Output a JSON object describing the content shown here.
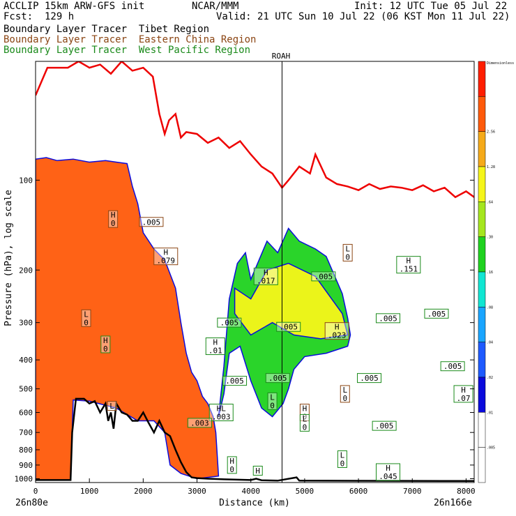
{
  "header": {
    "left_line1": "ACCLIP 15km ARW-GFS init",
    "left_line2": "Fcst:  129 h",
    "center": "NCAR/MMM",
    "right_line1": "Init: 12 UTC Tue 05 Jul 22",
    "right_line2": "Valid: 21 UTC Sun 10 Jul 22 (06 KST Mon 11 Jul 22)",
    "tracer_tibet": "Boundary Layer Tracer  Tibet Region",
    "tracer_china": "Boundary Layer Tracer  Eastern China Region",
    "tracer_pacific": "Boundary Layer Tracer  West Pacific Region",
    "marker": "ROAH"
  },
  "colors": {
    "tibet_line": "#000000",
    "china_line": "#8b4513",
    "pacific_line": "#1a8a1a",
    "tropopause": "#ee0000",
    "terrain": "#000000"
  },
  "chart_data": {
    "type": "heatmap",
    "xlabel": "Distance (km)",
    "ylabel": "Pressure (hPa), log scale",
    "x_start_label": "26n80e",
    "x_end_label": "26n166e",
    "xlim": [
      0,
      8150
    ],
    "ylim": [
      1030,
      40
    ],
    "y_scale": "log",
    "x_ticks": [
      0,
      1000,
      2000,
      3000,
      4000,
      5000,
      6000,
      7000,
      8000
    ],
    "y_ticks": [
      100,
      200,
      300,
      400,
      500,
      600,
      700,
      800,
      900,
      1000
    ],
    "marker_x": 4580,
    "colorbar": {
      "title": "Dimensionless",
      "labels": [
        ".005",
        ".01",
        ".02",
        ".04",
        ".08",
        ".16",
        ".30",
        ".64",
        "1.28",
        "2.56"
      ],
      "colors": [
        "#ffffff",
        "#ffffff",
        "#0a0adc",
        "#1e5aff",
        "#19a5ff",
        "#10e6d2",
        "#1fd21f",
        "#a5e61e",
        "#f5f519",
        "#f5aa19",
        "#ff5a0a",
        "#ff1e00"
      ]
    },
    "tropopause": [
      [
        0,
        52
      ],
      [
        220,
        42
      ],
      [
        400,
        42
      ],
      [
        600,
        42
      ],
      [
        800,
        40
      ],
      [
        1000,
        42
      ],
      [
        1200,
        41
      ],
      [
        1400,
        44
      ],
      [
        1600,
        40
      ],
      [
        1800,
        43
      ],
      [
        2000,
        42
      ],
      [
        2180,
        45
      ],
      [
        2300,
        60
      ],
      [
        2400,
        70
      ],
      [
        2480,
        63
      ],
      [
        2600,
        60
      ],
      [
        2700,
        72
      ],
      [
        2800,
        69
      ],
      [
        3000,
        70
      ],
      [
        3200,
        75
      ],
      [
        3400,
        72
      ],
      [
        3600,
        78
      ],
      [
        3800,
        74
      ],
      [
        4000,
        82
      ],
      [
        4200,
        90
      ],
      [
        4400,
        95
      ],
      [
        4580,
        106
      ],
      [
        4700,
        100
      ],
      [
        4900,
        90
      ],
      [
        5100,
        95
      ],
      [
        5200,
        82
      ],
      [
        5400,
        98
      ],
      [
        5600,
        103
      ],
      [
        5800,
        105
      ],
      [
        6000,
        108
      ],
      [
        6200,
        103
      ],
      [
        6400,
        107
      ],
      [
        6600,
        105
      ],
      [
        6800,
        106
      ],
      [
        7000,
        108
      ],
      [
        7200,
        104
      ],
      [
        7400,
        109
      ],
      [
        7600,
        106
      ],
      [
        7800,
        114
      ],
      [
        8000,
        109
      ],
      [
        8150,
        114
      ]
    ],
    "terrain": [
      [
        0,
        1010
      ],
      [
        650,
        1010
      ],
      [
        680,
        700
      ],
      [
        750,
        540
      ],
      [
        900,
        540
      ],
      [
        1000,
        560
      ],
      [
        1100,
        550
      ],
      [
        1200,
        600
      ],
      [
        1300,
        560
      ],
      [
        1350,
        640
      ],
      [
        1400,
        600
      ],
      [
        1450,
        680
      ],
      [
        1500,
        560
      ],
      [
        1600,
        600
      ],
      [
        1700,
        610
      ],
      [
        1800,
        640
      ],
      [
        1900,
        640
      ],
      [
        2000,
        600
      ],
      [
        2100,
        650
      ],
      [
        2200,
        700
      ],
      [
        2300,
        640
      ],
      [
        2400,
        700
      ],
      [
        2500,
        720
      ],
      [
        2600,
        800
      ],
      [
        2700,
        880
      ],
      [
        2800,
        950
      ],
      [
        2900,
        990
      ],
      [
        3000,
        995
      ],
      [
        3200,
        1000
      ],
      [
        3500,
        1005
      ],
      [
        4000,
        1010
      ],
      [
        4100,
        1000
      ],
      [
        4200,
        1012
      ],
      [
        4500,
        1015
      ],
      [
        4850,
        990
      ],
      [
        4900,
        1015
      ],
      [
        8150,
        1018
      ]
    ],
    "tracer_fields": [
      {
        "name": "Tibet",
        "level": ".005",
        "color": "#ff5a0a",
        "outline": [
          [
            0,
            85
          ],
          [
            200,
            84
          ],
          [
            400,
            86
          ],
          [
            700,
            85
          ],
          [
            1000,
            87
          ],
          [
            1300,
            86
          ],
          [
            1500,
            87
          ],
          [
            1700,
            88
          ],
          [
            1800,
            105
          ],
          [
            1900,
            120
          ],
          [
            2000,
            150
          ],
          [
            2200,
            170
          ],
          [
            2400,
            185
          ],
          [
            2600,
            230
          ],
          [
            2700,
            300
          ],
          [
            2800,
            380
          ],
          [
            2900,
            440
          ],
          [
            3000,
            470
          ],
          [
            3100,
            530
          ],
          [
            3200,
            560
          ],
          [
            3300,
            620
          ],
          [
            3350,
            700
          ],
          [
            3400,
            980
          ],
          [
            3000,
            1000
          ],
          [
            2700,
            960
          ],
          [
            2500,
            900
          ],
          [
            2400,
            700
          ],
          [
            2200,
            640
          ],
          [
            1900,
            640
          ],
          [
            1500,
            580
          ],
          [
            1000,
            550
          ],
          [
            700,
            545
          ],
          [
            650,
            1010
          ],
          [
            0,
            1010
          ]
        ]
      },
      {
        "name": "EastChina",
        "level": ".005",
        "color": "#1fd21f",
        "outline": [
          [
            3400,
            620
          ],
          [
            3500,
            420
          ],
          [
            3600,
            250
          ],
          [
            3750,
            190
          ],
          [
            3900,
            175
          ],
          [
            4000,
            215
          ],
          [
            4100,
            195
          ],
          [
            4300,
            160
          ],
          [
            4500,
            175
          ],
          [
            4700,
            145
          ],
          [
            4900,
            160
          ],
          [
            5200,
            170
          ],
          [
            5400,
            180
          ],
          [
            5700,
            240
          ],
          [
            5800,
            290
          ],
          [
            5850,
            330
          ],
          [
            5800,
            360
          ],
          [
            5400,
            380
          ],
          [
            5000,
            390
          ],
          [
            4800,
            430
          ],
          [
            4700,
            500
          ],
          [
            4600,
            560
          ],
          [
            4400,
            620
          ],
          [
            4200,
            580
          ],
          [
            4000,
            470
          ],
          [
            3800,
            360
          ],
          [
            3600,
            380
          ],
          [
            3500,
            520
          ]
        ]
      },
      {
        "name": "EastChinaOrange",
        "level": ".30",
        "color": "#f5f519",
        "outline": [
          [
            3700,
            230
          ],
          [
            4000,
            250
          ],
          [
            4300,
            200
          ],
          [
            4700,
            190
          ],
          [
            5200,
            210
          ],
          [
            5700,
            280
          ],
          [
            5800,
            330
          ],
          [
            5300,
            340
          ],
          [
            4800,
            330
          ],
          [
            4400,
            300
          ],
          [
            4000,
            330
          ],
          [
            3700,
            280
          ]
        ]
      }
    ],
    "labels": [
      {
        "text": "H",
        "sub": "0",
        "x": 1440,
        "p": 135,
        "color": "#8b4513"
      },
      {
        "text": ".005",
        "sub": "",
        "x": 2150,
        "p": 138,
        "color": "#8b4513"
      },
      {
        "text": "H",
        "sub": ".079",
        "x": 2420,
        "p": 180,
        "color": "#8b4513"
      },
      {
        "text": "L",
        "sub": "0",
        "x": 940,
        "p": 290,
        "color": "#8b4513"
      },
      {
        "text": "H",
        "sub": "0",
        "x": 1300,
        "p": 355,
        "color": "#1a8a1a"
      },
      {
        "text": "L",
        "sub": "",
        "x": 1420,
        "p": 570,
        "color": "#8b4513"
      },
      {
        "text": "H",
        "sub": ".01",
        "x": 3340,
        "p": 360,
        "color": "#1a8a1a"
      },
      {
        "text": ".005",
        "sub": "",
        "x": 3600,
        "p": 300,
        "color": "#1a8a1a"
      },
      {
        "text": "H",
        "sub": ".017",
        "x": 4280,
        "p": 210,
        "color": "#1a8a1a"
      },
      {
        "text": ".005",
        "sub": "",
        "x": 4700,
        "p": 310,
        "color": "#1a8a1a"
      },
      {
        "text": "H",
        "sub": ".023",
        "x": 5600,
        "p": 320,
        "color": "#8b4513"
      },
      {
        "text": ".005",
        "sub": "",
        "x": 5350,
        "p": 210,
        "color": "#1a8a1a"
      },
      {
        "text": ".005",
        "sub": "",
        "x": 4500,
        "p": 460,
        "color": "#1a8a1a"
      },
      {
        "text": ".005",
        "sub": "",
        "x": 3700,
        "p": 470,
        "color": "#1a8a1a"
      },
      {
        "text": "L",
        "sub": "0",
        "x": 4400,
        "p": 550,
        "color": "#1a8a1a"
      },
      {
        "text": "L",
        "sub": "0",
        "x": 5750,
        "p": 520,
        "color": "#8b4513"
      },
      {
        "text": ".005",
        "sub": "",
        "x": 6200,
        "p": 460,
        "color": "#1a8a1a"
      },
      {
        "text": ".005",
        "sub": "",
        "x": 6550,
        "p": 290,
        "color": "#1a8a1a"
      },
      {
        "text": ".005",
        "sub": "",
        "x": 7450,
        "p": 280,
        "color": "#1a8a1a"
      },
      {
        "text": ".005",
        "sub": "",
        "x": 7750,
        "p": 420,
        "color": "#1a8a1a"
      },
      {
        "text": "H",
        "sub": ".151",
        "x": 6930,
        "p": 192,
        "color": "#1a8a1a"
      },
      {
        "text": "H",
        "sub": ".07",
        "x": 7950,
        "p": 520,
        "color": "#1a8a1a"
      },
      {
        "text": ".005",
        "sub": "",
        "x": 6480,
        "p": 665,
        "color": "#1a8a1a"
      },
      {
        "text": "H",
        "sub": "0",
        "x": 5000,
        "p": 600,
        "color": "#8b4513"
      },
      {
        "text": "L",
        "sub": "0",
        "x": 5000,
        "p": 650,
        "color": "#1a8a1a"
      },
      {
        "text": "L",
        "sub": "0",
        "x": 5700,
        "p": 860,
        "color": "#1a8a1a"
      },
      {
        "text": "H",
        "sub": ".045",
        "x": 6550,
        "p": 950,
        "color": "#1a8a1a"
      },
      {
        "text": "H",
        "sub": "",
        "x": 4130,
        "p": 940,
        "color": "#1a8a1a"
      },
      {
        "text": "HL",
        "sub": ".003",
        "x": 3450,
        "p": 600,
        "color": "#1a8a1a"
      },
      {
        "text": ".003",
        "sub": "",
        "x": 3050,
        "p": 650,
        "color": "#1a8a1a"
      },
      {
        "text": "H",
        "sub": "0",
        "x": 3650,
        "p": 900,
        "color": "#1a8a1a"
      },
      {
        "text": "L",
        "sub": "0",
        "x": 5800,
        "p": 175,
        "color": "#8b4513"
      }
    ]
  }
}
